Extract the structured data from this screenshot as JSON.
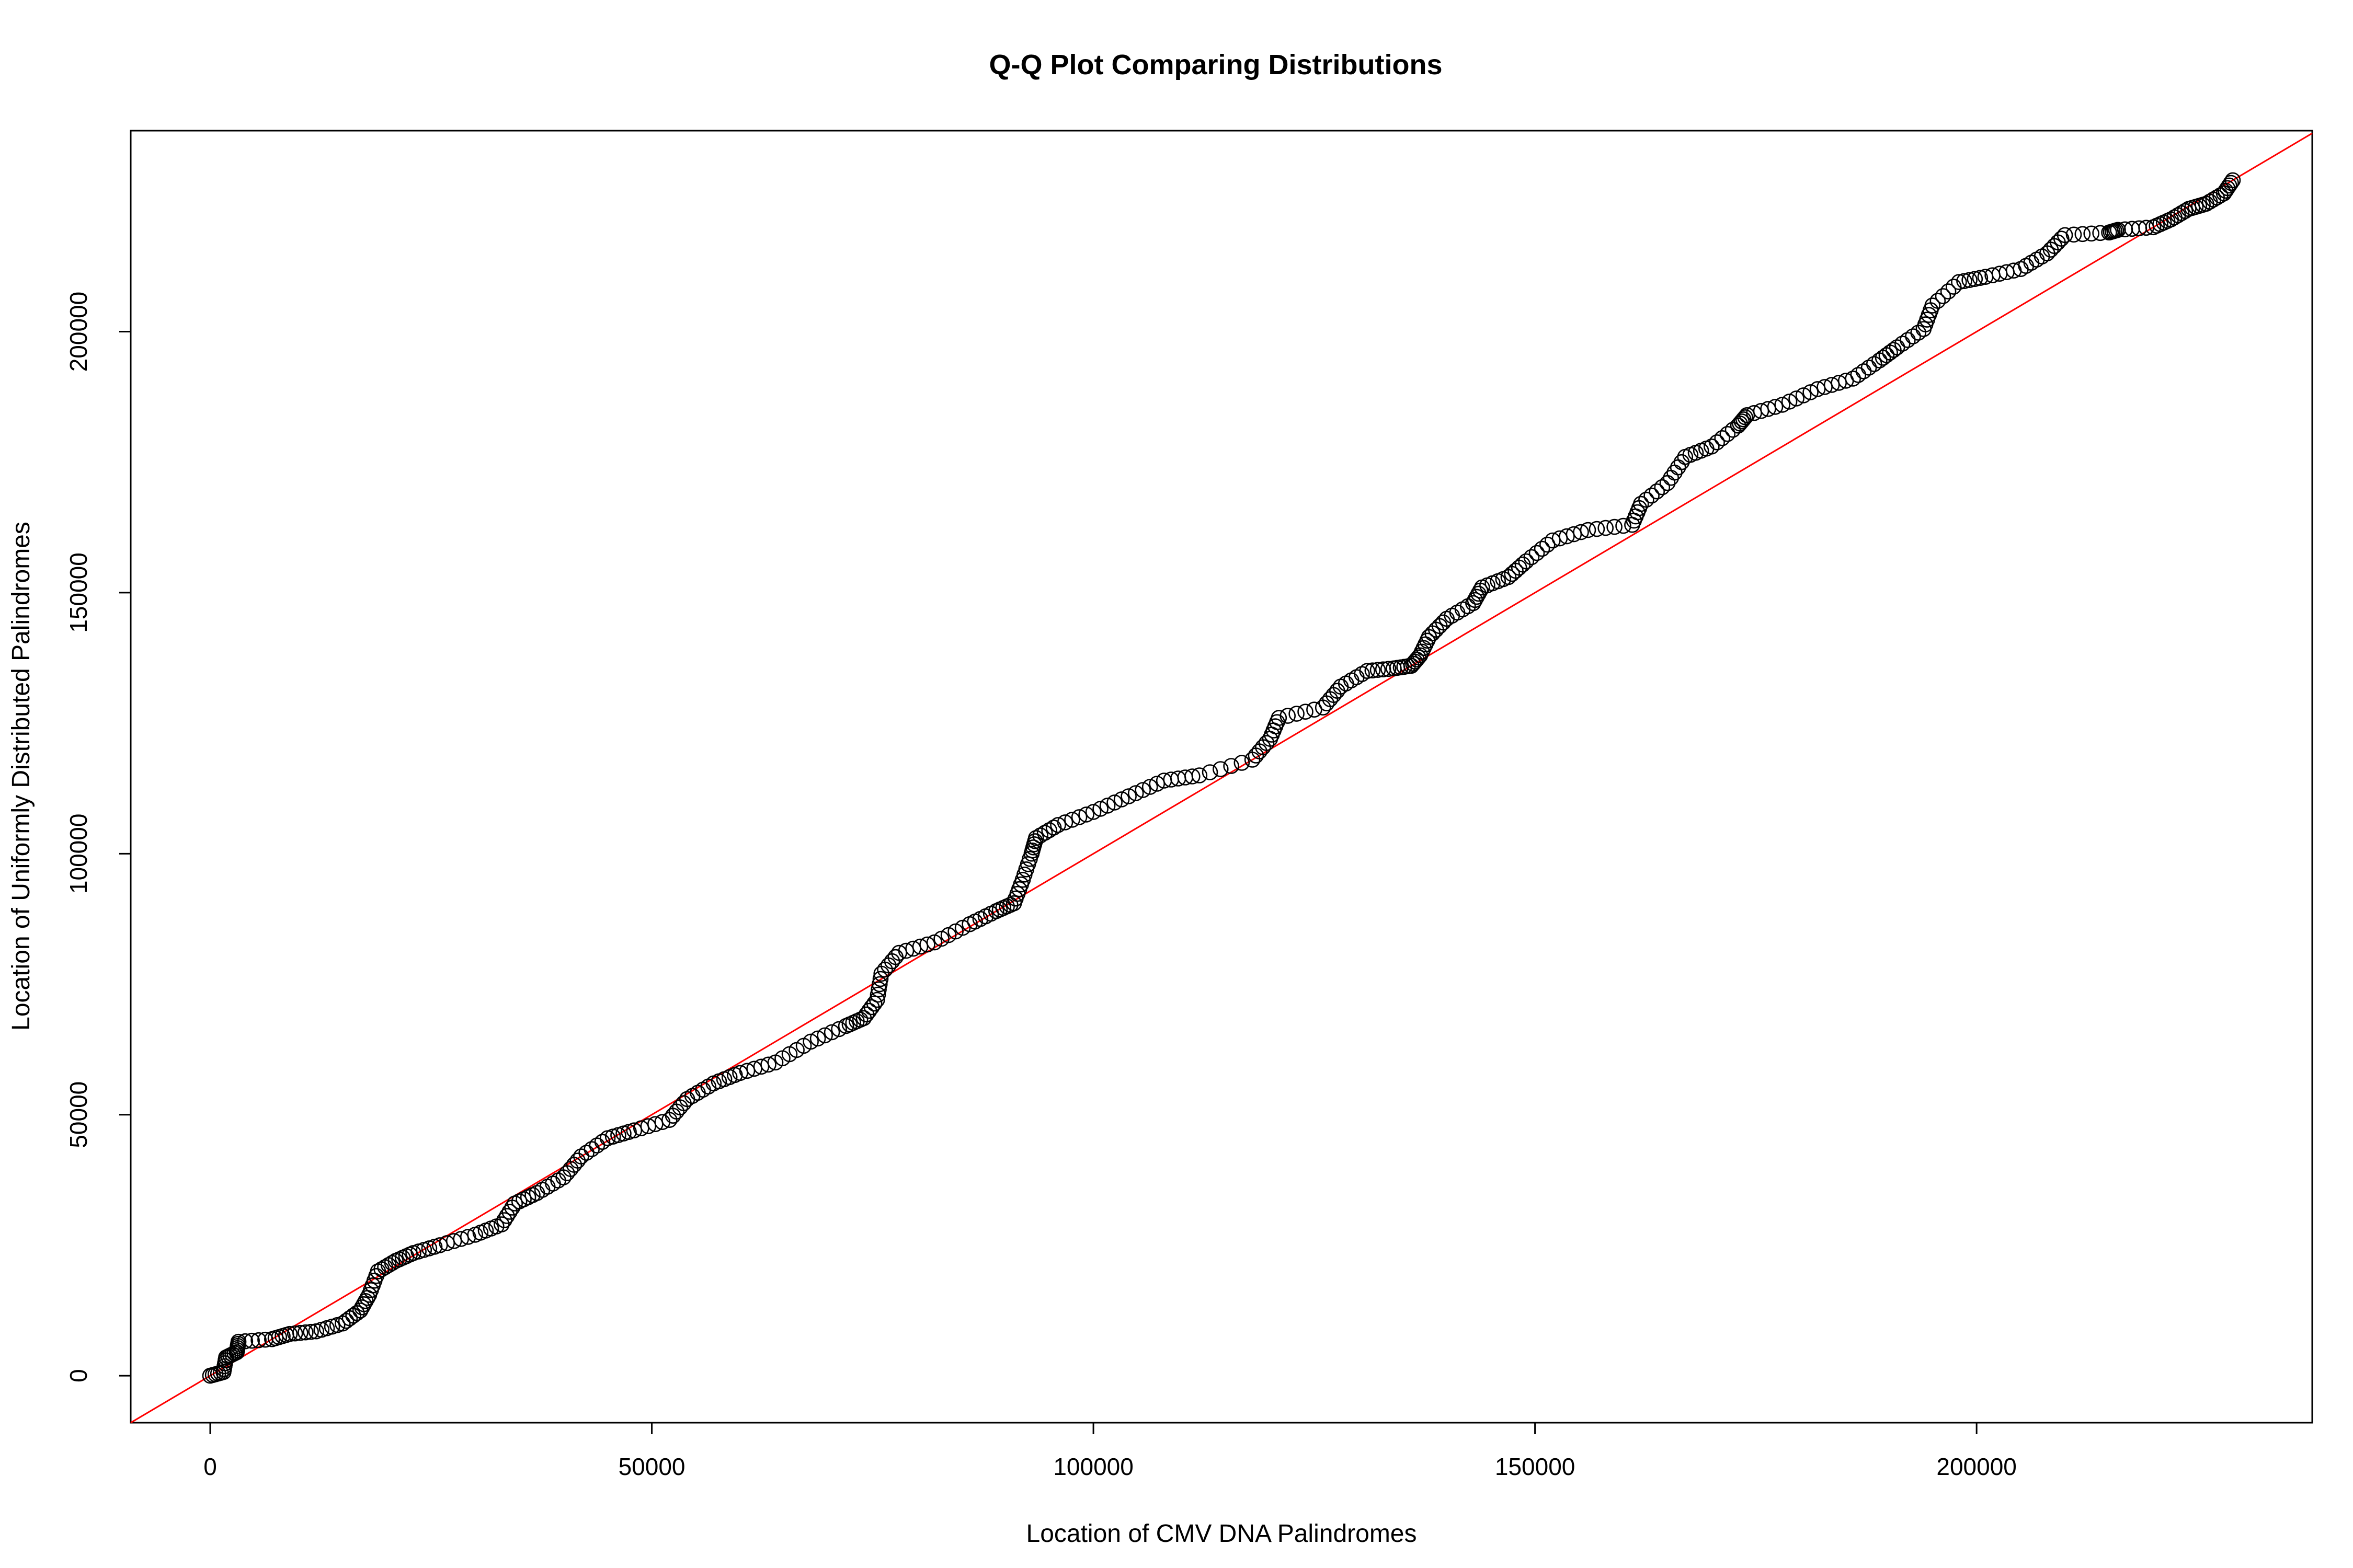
{
  "chart_data": {
    "type": "scatter",
    "title": "Q-Q Plot Comparing Distributions",
    "xlabel": "Location of CMV DNA Palindromes",
    "ylabel": "Location of Uniformly Distributed Palindromes",
    "xlim": [
      -9000,
      238000
    ],
    "ylim": [
      -9000,
      238500
    ],
    "x_ticks": [
      0,
      50000,
      100000,
      150000,
      200000
    ],
    "x_tick_labels": [
      "0",
      "50000",
      "100000",
      "150000",
      "200000"
    ],
    "y_ticks": [
      0,
      50000,
      100000,
      150000,
      200000
    ],
    "y_tick_labels": [
      "0",
      "50000",
      "100000",
      "150000",
      "200000"
    ],
    "grid": false,
    "legend": "none",
    "reference_line": {
      "intercept": 0,
      "slope": 1,
      "color": "#ff0000"
    },
    "point_color": "#000000",
    "anchor_points": [
      [
        0,
        0
      ],
      [
        1500,
        700
      ],
      [
        1800,
        3500
      ],
      [
        3000,
        4500
      ],
      [
        3200,
        6500
      ],
      [
        7000,
        7000
      ],
      [
        9000,
        8000
      ],
      [
        12000,
        8500
      ],
      [
        15000,
        10000
      ],
      [
        17000,
        12500
      ],
      [
        18000,
        15500
      ],
      [
        19000,
        20000
      ],
      [
        21000,
        22000
      ],
      [
        23000,
        23500
      ],
      [
        26000,
        25000
      ],
      [
        30000,
        27000
      ],
      [
        33000,
        29000
      ],
      [
        34500,
        33000
      ],
      [
        37000,
        35000
      ],
      [
        40000,
        38000
      ],
      [
        42000,
        42000
      ],
      [
        45000,
        45500
      ],
      [
        48000,
        47000
      ],
      [
        52000,
        49000
      ],
      [
        54000,
        53000
      ],
      [
        57000,
        56000
      ],
      [
        60000,
        58000
      ],
      [
        64000,
        60000
      ],
      [
        68000,
        64000
      ],
      [
        72000,
        67000
      ],
      [
        74000,
        68500
      ],
      [
        75500,
        72000
      ],
      [
        76000,
        77000
      ],
      [
        78000,
        81000
      ],
      [
        82000,
        83000
      ],
      [
        86000,
        86500
      ],
      [
        89000,
        89000
      ],
      [
        91000,
        90500
      ],
      [
        92000,
        95000
      ],
      [
        93000,
        100000
      ],
      [
        93500,
        103000
      ],
      [
        96000,
        105500
      ],
      [
        100000,
        108000
      ],
      [
        104000,
        111000
      ],
      [
        108000,
        114000
      ],
      [
        112000,
        115000
      ],
      [
        118000,
        118000
      ],
      [
        120000,
        122000
      ],
      [
        121000,
        126000
      ],
      [
        126000,
        128000
      ],
      [
        128000,
        132000
      ],
      [
        131000,
        135000
      ],
      [
        134000,
        135500
      ],
      [
        136000,
        136000
      ],
      [
        137000,
        138000
      ],
      [
        138000,
        141500
      ],
      [
        140000,
        145000
      ],
      [
        143000,
        148000
      ],
      [
        144000,
        151000
      ],
      [
        147000,
        153000
      ],
      [
        149000,
        156000
      ],
      [
        152000,
        160000
      ],
      [
        156000,
        162000
      ],
      [
        161000,
        163000
      ],
      [
        162000,
        167000
      ],
      [
        165000,
        171000
      ],
      [
        167000,
        176000
      ],
      [
        170000,
        178000
      ],
      [
        173000,
        182000
      ],
      [
        174000,
        184000
      ],
      [
        178000,
        186000
      ],
      [
        182000,
        189000
      ],
      [
        186000,
        191000
      ],
      [
        189000,
        194500
      ],
      [
        191000,
        197000
      ],
      [
        194000,
        200500
      ],
      [
        195000,
        205000
      ],
      [
        198000,
        209500
      ],
      [
        201000,
        210500
      ],
      [
        205000,
        212000
      ],
      [
        208000,
        215000
      ],
      [
        210000,
        218500
      ],
      [
        215000,
        219000
      ],
      [
        216000,
        219500
      ],
      [
        220000,
        220000
      ],
      [
        222000,
        221500
      ],
      [
        224000,
        223500
      ],
      [
        226000,
        224500
      ],
      [
        228000,
        226500
      ],
      [
        229000,
        229000
      ]
    ]
  }
}
